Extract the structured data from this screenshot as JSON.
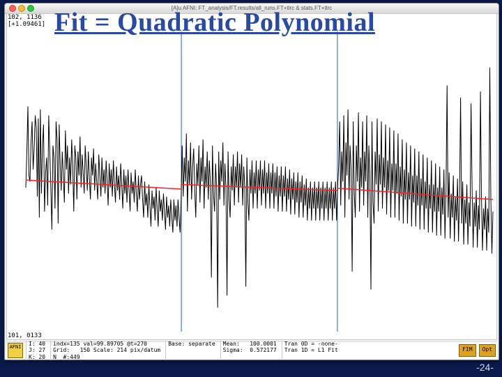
{
  "overlay_title": "Fit = Quadratic Polynomial",
  "window_title": "[A]u AFNI: FT_analysis/FT.results/all_runs.FT+tlrc & stats.FT+tlrc",
  "top_coords": "102, 1136\n[+1.09461]",
  "bottom_coords": "101, 0133",
  "status": {
    "icon_label": "AFNI",
    "col1": "I: 40\nJ: 27\nK: 20",
    "col2": "indx=135 val=99.89705 @t=270\nGrid:   150 Scale: 214 pix/datum\nN  #:449",
    "col3": "Base: separate",
    "col4": "Mean:   100.0001\nSigma:  0.572177",
    "col5": "Tran 0D = -none-\nTran 1D = L1 Fit",
    "btn1": "FIM",
    "btn2": "Opt"
  },
  "chart": {
    "type": "line",
    "background_color": "#ffffff",
    "signal_color": "#000000",
    "signal_width": 1.0,
    "fit_color": "#ff2020",
    "fit_width": 1.5,
    "vline_color": "#2060d0",
    "vline_width": 1.0,
    "vline_x": [
      0.333,
      0.667
    ],
    "border_color": "#0a1a4a",
    "n_points": 449,
    "xlim": [
      0,
      448
    ],
    "ylim": [
      98.0,
      102.0
    ],
    "fit_segments": [
      {
        "xf": [
          0.0,
          0.333
        ],
        "yf": [
          0.505,
          0.475
        ]
      },
      {
        "xf": [
          0.333,
          0.667
        ],
        "yf": [
          0.49,
          0.47
        ]
      },
      {
        "xf": [
          0.667,
          1.0
        ],
        "yf": [
          0.478,
          0.44
        ]
      }
    ],
    "signal_yf": [
      0.48,
      0.6,
      0.75,
      0.52,
      0.5,
      0.63,
      0.7,
      0.54,
      0.61,
      0.72,
      0.68,
      0.45,
      0.71,
      0.38,
      0.74,
      0.46,
      0.62,
      0.69,
      0.4,
      0.53,
      0.58,
      0.42,
      0.72,
      0.6,
      0.48,
      0.34,
      0.62,
      0.58,
      0.41,
      0.7,
      0.64,
      0.36,
      0.69,
      0.55,
      0.47,
      0.6,
      0.52,
      0.43,
      0.67,
      0.54,
      0.62,
      0.46,
      0.58,
      0.49,
      0.64,
      0.55,
      0.4,
      0.62,
      0.58,
      0.44,
      0.6,
      0.52,
      0.65,
      0.48,
      0.59,
      0.53,
      0.46,
      0.62,
      0.55,
      0.47,
      0.6,
      0.51,
      0.44,
      0.58,
      0.52,
      0.61,
      0.47,
      0.56,
      0.5,
      0.44,
      0.59,
      0.52,
      0.45,
      0.58,
      0.48,
      0.54,
      0.46,
      0.57,
      0.5,
      0.42,
      0.56,
      0.48,
      0.54,
      0.45,
      0.57,
      0.49,
      0.43,
      0.55,
      0.47,
      0.52,
      0.44,
      0.56,
      0.49,
      0.41,
      0.54,
      0.46,
      0.52,
      0.43,
      0.54,
      0.47,
      0.4,
      0.53,
      0.46,
      0.5,
      0.43,
      0.54,
      0.46,
      0.4,
      0.52,
      0.44,
      0.49,
      0.52,
      0.44,
      0.38,
      0.5,
      0.42,
      0.46,
      0.38,
      0.49,
      0.42,
      0.35,
      0.47,
      0.41,
      0.45,
      0.37,
      0.48,
      0.41,
      0.35,
      0.47,
      0.4,
      0.44,
      0.37,
      0.46,
      0.4,
      0.34,
      0.45,
      0.38,
      0.42,
      0.35,
      0.44,
      0.38,
      0.33,
      0.44,
      0.37,
      0.42,
      0.35,
      0.44,
      0.38,
      0.33,
      0.44,
      0.62,
      0.45,
      0.58,
      0.5,
      0.66,
      0.4,
      0.57,
      0.49,
      0.63,
      0.44,
      0.55,
      0.61,
      0.47,
      0.38,
      0.56,
      0.49,
      0.62,
      0.43,
      0.58,
      0.5,
      0.64,
      0.41,
      0.55,
      0.48,
      0.6,
      0.44,
      0.57,
      0.5,
      0.18,
      0.62,
      0.46,
      0.4,
      0.56,
      0.48,
      0.08,
      0.6,
      0.44,
      0.57,
      0.5,
      0.63,
      0.42,
      0.56,
      0.48,
      0.12,
      0.6,
      0.44,
      0.38,
      0.55,
      0.47,
      0.59,
      0.42,
      0.55,
      0.48,
      0.6,
      0.43,
      0.56,
      0.48,
      0.59,
      0.42,
      0.55,
      0.48,
      0.15,
      0.58,
      0.43,
      0.37,
      0.54,
      0.46,
      0.57,
      0.41,
      0.53,
      0.46,
      0.57,
      0.41,
      0.54,
      0.47,
      0.57,
      0.42,
      0.54,
      0.46,
      0.57,
      0.41,
      0.53,
      0.46,
      0.56,
      0.41,
      0.53,
      0.46,
      0.56,
      0.41,
      0.53,
      0.45,
      0.55,
      0.4,
      0.52,
      0.45,
      0.55,
      0.4,
      0.52,
      0.45,
      0.55,
      0.4,
      0.51,
      0.44,
      0.54,
      0.39,
      0.51,
      0.44,
      0.53,
      0.39,
      0.5,
      0.43,
      0.53,
      0.38,
      0.5,
      0.43,
      0.52,
      0.38,
      0.49,
      0.42,
      0.51,
      0.37,
      0.48,
      0.41,
      0.5,
      0.37,
      0.48,
      0.41,
      0.5,
      0.37,
      0.48,
      0.41,
      0.5,
      0.37,
      0.48,
      0.41,
      0.5,
      0.37,
      0.48,
      0.41,
      0.5,
      0.37,
      0.48,
      0.41,
      0.5,
      0.37,
      0.48,
      0.41,
      0.5,
      0.37,
      0.48,
      0.55,
      0.7,
      0.42,
      0.6,
      0.5,
      0.72,
      0.38,
      0.63,
      0.52,
      0.74,
      0.44,
      0.62,
      0.54,
      0.2,
      0.7,
      0.46,
      0.38,
      0.62,
      0.5,
      0.73,
      0.4,
      0.58,
      0.48,
      0.7,
      0.42,
      0.6,
      0.5,
      0.72,
      0.38,
      0.62,
      0.52,
      0.14,
      0.7,
      0.43,
      0.36,
      0.6,
      0.49,
      0.71,
      0.4,
      0.59,
      0.49,
      0.7,
      0.41,
      0.58,
      0.48,
      0.69,
      0.39,
      0.57,
      0.47,
      0.68,
      0.38,
      0.56,
      0.47,
      0.67,
      0.38,
      0.56,
      0.46,
      0.66,
      0.37,
      0.55,
      0.45,
      0.64,
      0.36,
      0.54,
      0.44,
      0.63,
      0.36,
      0.53,
      0.44,
      0.62,
      0.35,
      0.52,
      0.43,
      0.61,
      0.35,
      0.52,
      0.42,
      0.6,
      0.34,
      0.51,
      0.42,
      0.59,
      0.34,
      0.5,
      0.41,
      0.58,
      0.33,
      0.49,
      0.41,
      0.57,
      0.33,
      0.49,
      0.4,
      0.56,
      0.32,
      0.48,
      0.4,
      0.55,
      0.32,
      0.48,
      0.39,
      0.54,
      0.31,
      0.47,
      0.82,
      0.38,
      0.53,
      0.31,
      0.46,
      0.38,
      0.52,
      0.3,
      0.45,
      0.37,
      0.51,
      0.3,
      0.45,
      0.78,
      0.36,
      0.5,
      0.29,
      0.44,
      0.36,
      0.49,
      0.29,
      0.43,
      0.35,
      0.76,
      0.48,
      0.28,
      0.43,
      0.35,
      0.47,
      0.28,
      0.42,
      0.34,
      0.8,
      0.46,
      0.27,
      0.41,
      0.34,
      0.45,
      0.27,
      0.41,
      0.33,
      0.88,
      0.44,
      0.26,
      0.4
    ]
  },
  "slide_number": "-24-"
}
